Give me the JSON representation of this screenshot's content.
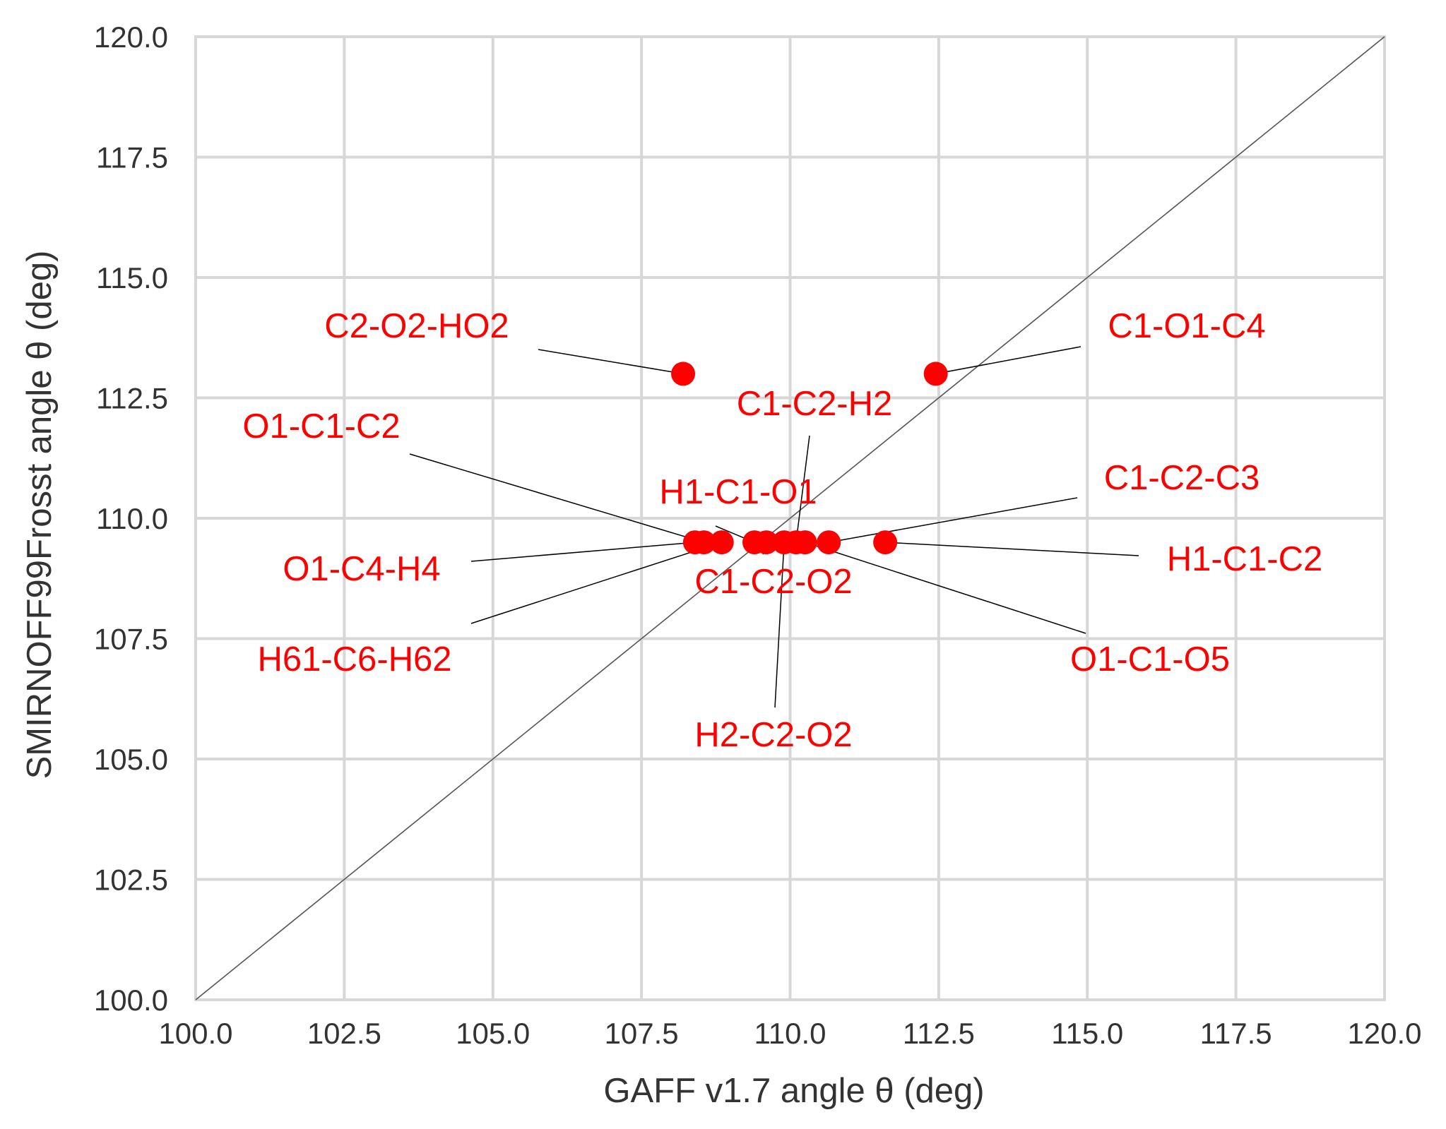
{
  "chart_data": {
    "type": "scatter",
    "xlabel": "GAFF v1.7 angle θ (deg)",
    "ylabel": "SMIRNOFF99Frosst angle θ (deg)",
    "xlim": [
      100.0,
      120.0
    ],
    "ylim": [
      100.0,
      120.0
    ],
    "x_ticks": [
      "100.0",
      "102.5",
      "105.0",
      "107.5",
      "110.0",
      "112.5",
      "115.0",
      "117.5",
      "120.0"
    ],
    "y_ticks": [
      "100.0",
      "102.5",
      "105.0",
      "107.5",
      "110.0",
      "112.5",
      "115.0",
      "117.5",
      "120.0"
    ],
    "x_tick_values": [
      100.0,
      102.5,
      105.0,
      107.5,
      110.0,
      112.5,
      115.0,
      117.5,
      120.0
    ],
    "y_tick_values": [
      100.0,
      102.5,
      105.0,
      107.5,
      110.0,
      112.5,
      115.0,
      117.5,
      120.0
    ],
    "grid": true,
    "diagonal_line": true,
    "point_color": "#ff0000",
    "annotation_color": "#ff0000",
    "grid_color": "#d7d7d7",
    "points": [
      {
        "label": "C2-O2-HO2",
        "x": 108.2,
        "y": 113.0
      },
      {
        "label": "C1-O1-C4",
        "x": 112.45,
        "y": 113.0
      },
      {
        "label": "O1-C1-C2",
        "x": 108.55,
        "y": 109.5
      },
      {
        "label": "O1-C4-H4",
        "x": 108.4,
        "y": 109.5
      },
      {
        "label": "H61-C6-H62",
        "x": 108.85,
        "y": 109.5
      },
      {
        "label": "H1-C1-O1",
        "x": 109.4,
        "y": 109.5
      },
      {
        "label": "C1-C2-O2",
        "x": 109.6,
        "y": 109.5
      },
      {
        "label": "H2-C2-O2",
        "x": 109.9,
        "y": 109.5
      },
      {
        "label": "C1-C2-H2",
        "x": 110.1,
        "y": 109.5
      },
      {
        "label": "O1-C1-O5",
        "x": 110.25,
        "y": 109.5
      },
      {
        "label": "C1-C2-C3",
        "x": 110.65,
        "y": 109.5
      },
      {
        "label": "H1-C1-C2",
        "x": 111.6,
        "y": 109.5
      }
    ]
  }
}
